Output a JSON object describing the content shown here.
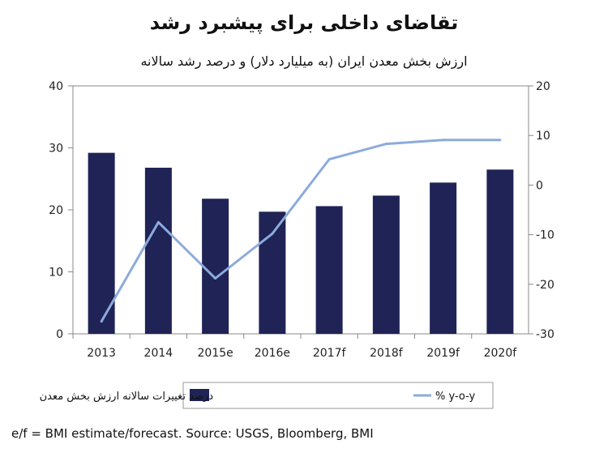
{
  "title": "تقاضای داخلی برای پیشبرد رشد",
  "subtitle": "ارزش بخش معدن ایران (به میلیارد دلار) و درصد رشد سالانه",
  "footnote": "e/f = BMI estimate/forecast. Source: USGS, Bloomberg, BMI",
  "colors": {
    "bar": "#1f2356",
    "line": "#8cabdc",
    "axis": "#888888"
  },
  "chart_data": {
    "type": "bar",
    "categories": [
      "2013",
      "2014",
      "2015e",
      "2016e",
      "2017f",
      "2018f",
      "2019f",
      "2020f"
    ],
    "series": [
      {
        "name": "درصد تغییرات سالانه ارزش بخش معدن",
        "type": "bar",
        "axis": "left",
        "values": [
          29.2,
          26.8,
          21.8,
          19.7,
          20.6,
          22.3,
          24.4,
          26.5
        ]
      },
      {
        "name": "% y-o-y",
        "type": "line",
        "axis": "right",
        "values": [
          -27.5,
          -7.5,
          -18.8,
          -9.8,
          5.2,
          8.3,
          9.1,
          9.1
        ]
      }
    ],
    "y_left": {
      "min": 0,
      "max": 40,
      "ticks": [
        "0",
        "10",
        "20",
        "30",
        "40"
      ]
    },
    "y_right": {
      "min": -30,
      "max": 20,
      "ticks": [
        "-30",
        "-20",
        "-10",
        "0",
        "10",
        "20"
      ]
    },
    "legend_position": "bottom"
  }
}
